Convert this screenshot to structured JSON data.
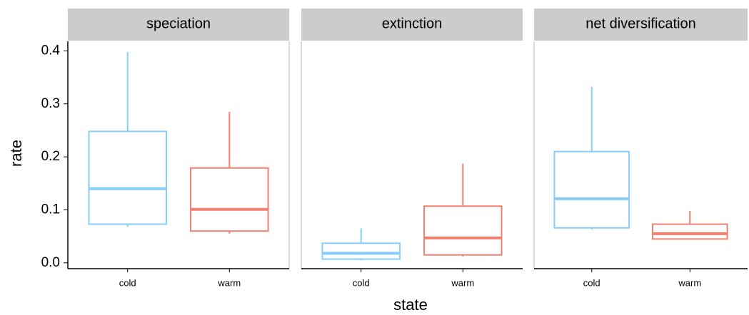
{
  "chart_data": {
    "type": "box",
    "ylabel": "rate",
    "xlabel": "state",
    "categories": [
      "cold",
      "warm"
    ],
    "colors": [
      "#87cefa",
      "#f08070"
    ],
    "ylim": [
      -0.011,
      0.418
    ],
    "yticks": [
      {
        "value": 0,
        "label": "0.0"
      },
      0.1,
      0.2,
      0.3,
      0.4
    ],
    "panels": [
      {
        "title": "speciation",
        "boxes": [
          {
            "min": 0.068,
            "q1": 0.073,
            "median": 0.14,
            "q3": 0.248,
            "max": 0.398
          },
          {
            "min": 0.055,
            "q1": 0.06,
            "median": 0.101,
            "q3": 0.179,
            "max": 0.285
          }
        ]
      },
      {
        "title": "extinction",
        "boxes": [
          {
            "min": 0.005,
            "q1": 0.007,
            "median": 0.018,
            "q3": 0.037,
            "max": 0.065
          },
          {
            "min": 0.012,
            "q1": 0.015,
            "median": 0.047,
            "q3": 0.107,
            "max": 0.187
          }
        ]
      },
      {
        "title": "net diversification",
        "boxes": [
          {
            "min": 0.063,
            "q1": 0.066,
            "median": 0.121,
            "q3": 0.21,
            "max": 0.332
          },
          {
            "min": 0.045,
            "q1": 0.045,
            "median": 0.055,
            "q3": 0.073,
            "max": 0.098
          }
        ]
      }
    ]
  }
}
